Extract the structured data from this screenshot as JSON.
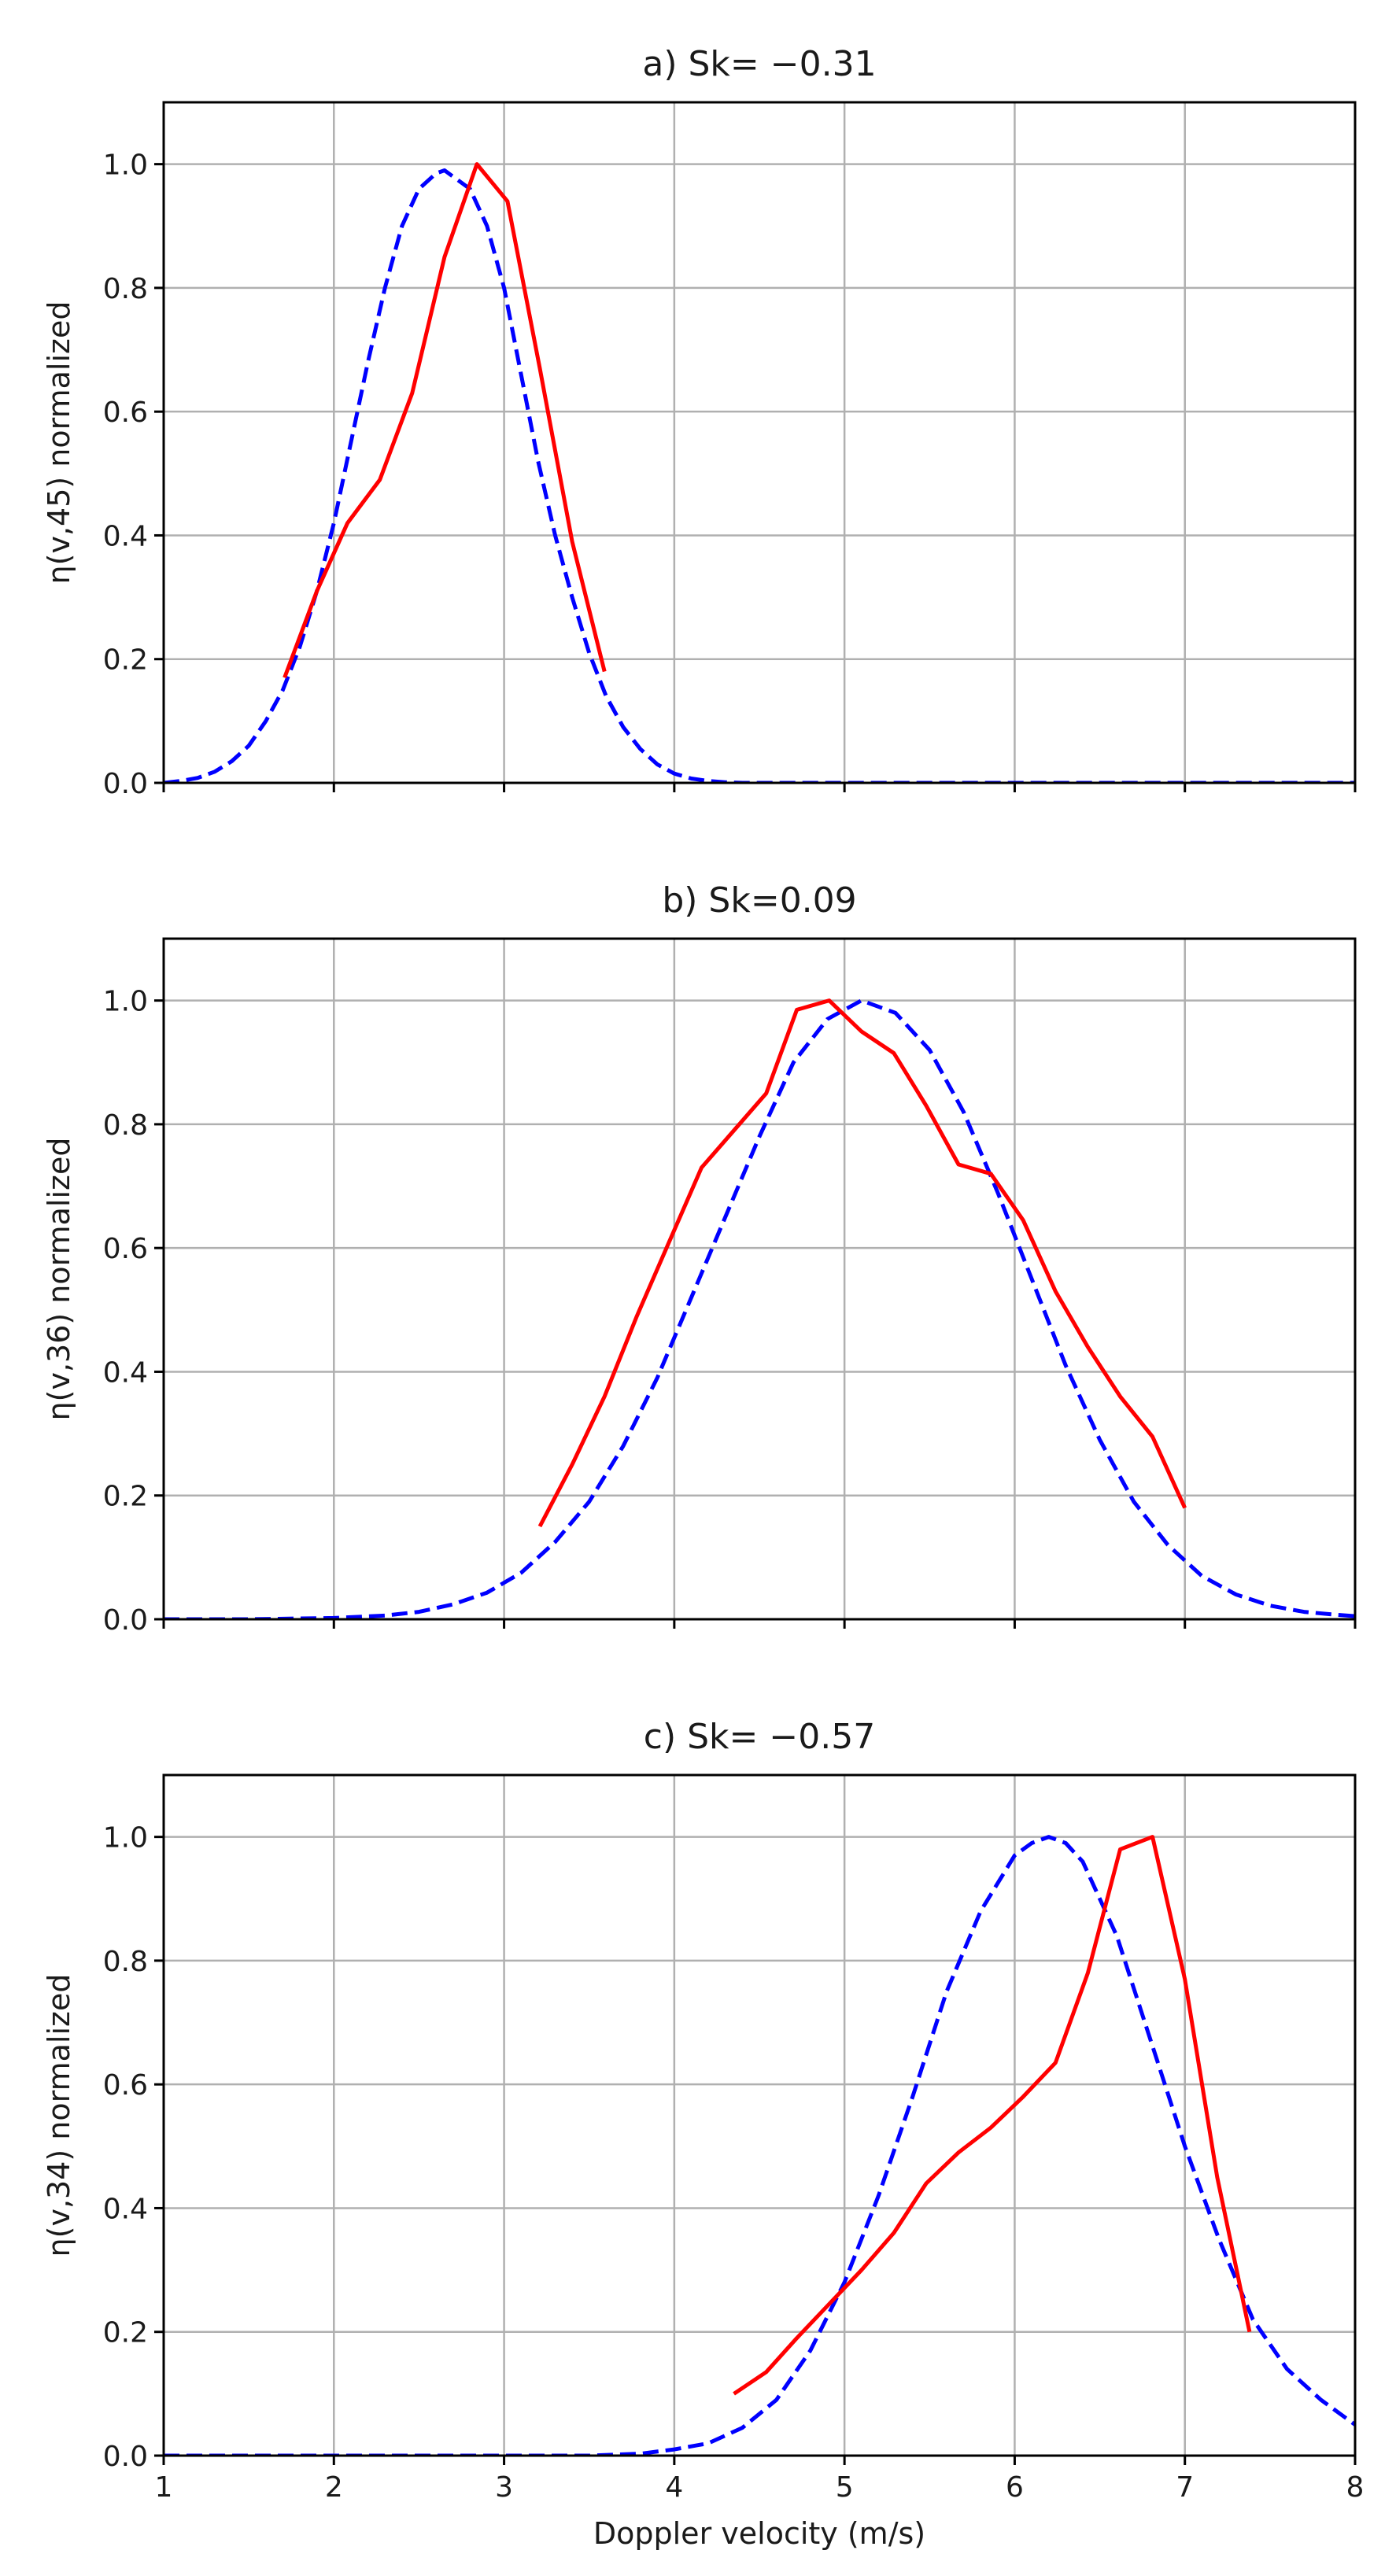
{
  "chart_data": [
    {
      "type": "line",
      "title": "a) Sk= −0.31",
      "xlabel": "",
      "ylabel": "η(v,45) normalized",
      "xlim": [
        1,
        8
      ],
      "ylim": [
        0,
        1.1
      ],
      "xticks": [
        1,
        2,
        3,
        4,
        5,
        6,
        7,
        8
      ],
      "xtick_labels_shown": false,
      "yticks": [
        0.0,
        0.2,
        0.4,
        0.6,
        0.8,
        1.0
      ],
      "ytick_labels": [
        "0.0",
        "0.2",
        "0.4",
        "0.6",
        "0.8",
        "1.0"
      ],
      "grid": true,
      "series": [
        {
          "color": "#0000ff",
          "style": "dashed",
          "x": [
            1.0,
            1.1,
            1.2,
            1.3,
            1.4,
            1.5,
            1.6,
            1.7,
            1.8,
            1.9,
            2.0,
            2.1,
            2.2,
            2.3,
            2.4,
            2.5,
            2.6,
            2.65,
            2.7,
            2.8,
            2.9,
            3.0,
            3.1,
            3.2,
            3.3,
            3.4,
            3.5,
            3.6,
            3.7,
            3.8,
            3.9,
            4.0,
            4.1,
            4.2,
            4.3,
            4.4,
            4.5,
            5.0,
            6.0,
            7.0,
            8.0
          ],
          "y": [
            0.0,
            0.003,
            0.008,
            0.018,
            0.035,
            0.06,
            0.1,
            0.15,
            0.22,
            0.31,
            0.42,
            0.55,
            0.68,
            0.8,
            0.9,
            0.96,
            0.985,
            0.99,
            0.98,
            0.96,
            0.9,
            0.8,
            0.66,
            0.52,
            0.4,
            0.3,
            0.21,
            0.14,
            0.09,
            0.055,
            0.03,
            0.015,
            0.007,
            0.003,
            0.001,
            0.0,
            0.0,
            0.0,
            0.0,
            0.0,
            0.0
          ]
        },
        {
          "color": "#ff0000",
          "style": "solid",
          "x": [
            1.71,
            1.9,
            2.08,
            2.27,
            2.46,
            2.65,
            2.84,
            3.02,
            3.21,
            3.4,
            3.59
          ],
          "y": [
            0.17,
            0.31,
            0.42,
            0.49,
            0.63,
            0.85,
            1.0,
            0.94,
            0.67,
            0.39,
            0.18
          ]
        }
      ]
    },
    {
      "type": "line",
      "title": "b) Sk=0.09",
      "xlabel": "",
      "ylabel": "η(v,36) normalized",
      "xlim": [
        1,
        8
      ],
      "ylim": [
        0,
        1.1
      ],
      "xticks": [
        1,
        2,
        3,
        4,
        5,
        6,
        7,
        8
      ],
      "xtick_labels_shown": false,
      "yticks": [
        0.0,
        0.2,
        0.4,
        0.6,
        0.8,
        1.0
      ],
      "ytick_labels": [
        "0.0",
        "0.2",
        "0.4",
        "0.6",
        "0.8",
        "1.0"
      ],
      "grid": true,
      "series": [
        {
          "color": "#0000ff",
          "style": "dashed",
          "x": [
            1.0,
            1.5,
            2.0,
            2.3,
            2.5,
            2.7,
            2.9,
            3.1,
            3.3,
            3.5,
            3.7,
            3.9,
            4.1,
            4.3,
            4.5,
            4.7,
            4.9,
            5.1,
            5.3,
            5.5,
            5.7,
            5.9,
            6.1,
            6.3,
            6.5,
            6.7,
            6.9,
            7.1,
            7.3,
            7.5,
            7.7,
            7.9,
            8.0
          ],
          "y": [
            0.0,
            0.0,
            0.002,
            0.006,
            0.012,
            0.024,
            0.043,
            0.075,
            0.125,
            0.19,
            0.28,
            0.39,
            0.52,
            0.65,
            0.78,
            0.9,
            0.97,
            1.0,
            0.98,
            0.92,
            0.82,
            0.69,
            0.55,
            0.41,
            0.29,
            0.19,
            0.12,
            0.07,
            0.04,
            0.022,
            0.012,
            0.007,
            0.005
          ]
        },
        {
          "color": "#ff0000",
          "style": "solid",
          "x": [
            3.21,
            3.4,
            3.59,
            3.78,
            3.97,
            4.16,
            4.35,
            4.54,
            4.72,
            4.91,
            5.1,
            5.29,
            5.48,
            5.67,
            5.86,
            6.05,
            6.24,
            6.43,
            6.62,
            6.81,
            7.0
          ],
          "y": [
            0.15,
            0.25,
            0.36,
            0.49,
            0.61,
            0.73,
            0.79,
            0.85,
            0.985,
            1.0,
            0.95,
            0.915,
            0.83,
            0.735,
            0.72,
            0.645,
            0.53,
            0.44,
            0.36,
            0.295,
            0.18
          ]
        }
      ]
    },
    {
      "type": "line",
      "title": "c) Sk= −0.57",
      "xlabel": "Doppler velocity (m/s)",
      "ylabel": "η(v,34) normalized",
      "xlim": [
        1,
        8
      ],
      "ylim": [
        0,
        1.1
      ],
      "xticks": [
        1,
        2,
        3,
        4,
        5,
        6,
        7,
        8
      ],
      "xtick_labels": [
        "1",
        "2",
        "3",
        "4",
        "5",
        "6",
        "7",
        "8"
      ],
      "xtick_labels_shown": true,
      "yticks": [
        0.0,
        0.2,
        0.4,
        0.6,
        0.8,
        1.0
      ],
      "ytick_labels": [
        "0.0",
        "0.2",
        "0.4",
        "0.6",
        "0.8",
        "1.0"
      ],
      "grid": true,
      "series": [
        {
          "color": "#0000ff",
          "style": "dashed",
          "x": [
            1.0,
            2.0,
            3.0,
            3.5,
            3.8,
            4.0,
            4.2,
            4.4,
            4.6,
            4.8,
            5.0,
            5.2,
            5.4,
            5.6,
            5.8,
            6.0,
            6.1,
            6.2,
            6.3,
            6.4,
            6.6,
            6.8,
            7.0,
            7.2,
            7.4,
            7.6,
            7.8,
            8.0
          ],
          "y": [
            0.0,
            0.0,
            0.0,
            0.0,
            0.003,
            0.01,
            0.02,
            0.045,
            0.09,
            0.17,
            0.28,
            0.42,
            0.58,
            0.75,
            0.88,
            0.97,
            0.99,
            1.0,
            0.99,
            0.96,
            0.84,
            0.67,
            0.5,
            0.35,
            0.22,
            0.14,
            0.09,
            0.05
          ]
        },
        {
          "color": "#ff0000",
          "style": "solid",
          "x": [
            4.35,
            4.54,
            4.72,
            4.91,
            5.1,
            5.29,
            5.48,
            5.67,
            5.86,
            6.05,
            6.24,
            6.43,
            6.62,
            6.81,
            7.0,
            7.19,
            7.38
          ],
          "y": [
            0.1,
            0.135,
            0.19,
            0.245,
            0.3,
            0.36,
            0.44,
            0.49,
            0.53,
            0.58,
            0.635,
            0.78,
            0.98,
            1.0,
            0.77,
            0.45,
            0.2
          ]
        }
      ]
    }
  ]
}
